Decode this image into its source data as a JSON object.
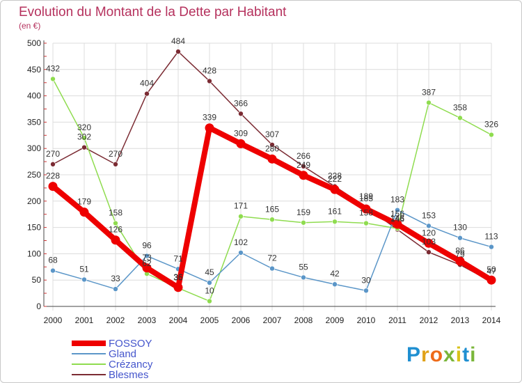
{
  "chart_data": {
    "type": "line",
    "title": "Evolution du Montant de la Dette par Habitant",
    "subtitle": "(en €)",
    "xlabel": "",
    "ylabel": "",
    "ylim": [
      0,
      500
    ],
    "yticks": [
      0,
      50,
      100,
      150,
      200,
      250,
      300,
      350,
      400,
      450,
      500
    ],
    "grid": true,
    "legend_position": "bottom-left",
    "x": [
      "2000",
      "2001",
      "2002",
      "2003",
      "2004",
      "2005",
      "2006",
      "2007",
      "2008",
      "2009",
      "2010",
      "2011",
      "2012",
      "2013",
      "2014"
    ],
    "series": [
      {
        "name": "Blesmes",
        "color": "#7b2b33",
        "values": [
          270,
          302,
          270,
          404,
          484,
          428,
          366,
          307,
          266,
          228,
          189,
          146,
          103,
          79,
          47
        ]
      },
      {
        "name": "Crézancy",
        "color": "#8fdc4f",
        "values": [
          432,
          320,
          158,
          62,
          35,
          10,
          171,
          165,
          159,
          161,
          158,
          148,
          387,
          358,
          326
        ]
      },
      {
        "name": "Gland",
        "color": "#5b96c8",
        "values": [
          68,
          51,
          33,
          96,
          71,
          45,
          102,
          72,
          55,
          42,
          30,
          183,
          153,
          130,
          113
        ]
      },
      {
        "name": "FOSSOY",
        "color": "#ee0000",
        "values": [
          228,
          179,
          126,
          73,
          36,
          339,
          309,
          280,
          249,
          222,
          185,
          156,
          120,
          86,
          50
        ]
      }
    ],
    "legend_order": [
      "FOSSOY",
      "Gland",
      "Crézancy",
      "Blesmes"
    ],
    "legend_text_color": "#4455cc"
  },
  "brand": {
    "text": "Proxiti"
  }
}
